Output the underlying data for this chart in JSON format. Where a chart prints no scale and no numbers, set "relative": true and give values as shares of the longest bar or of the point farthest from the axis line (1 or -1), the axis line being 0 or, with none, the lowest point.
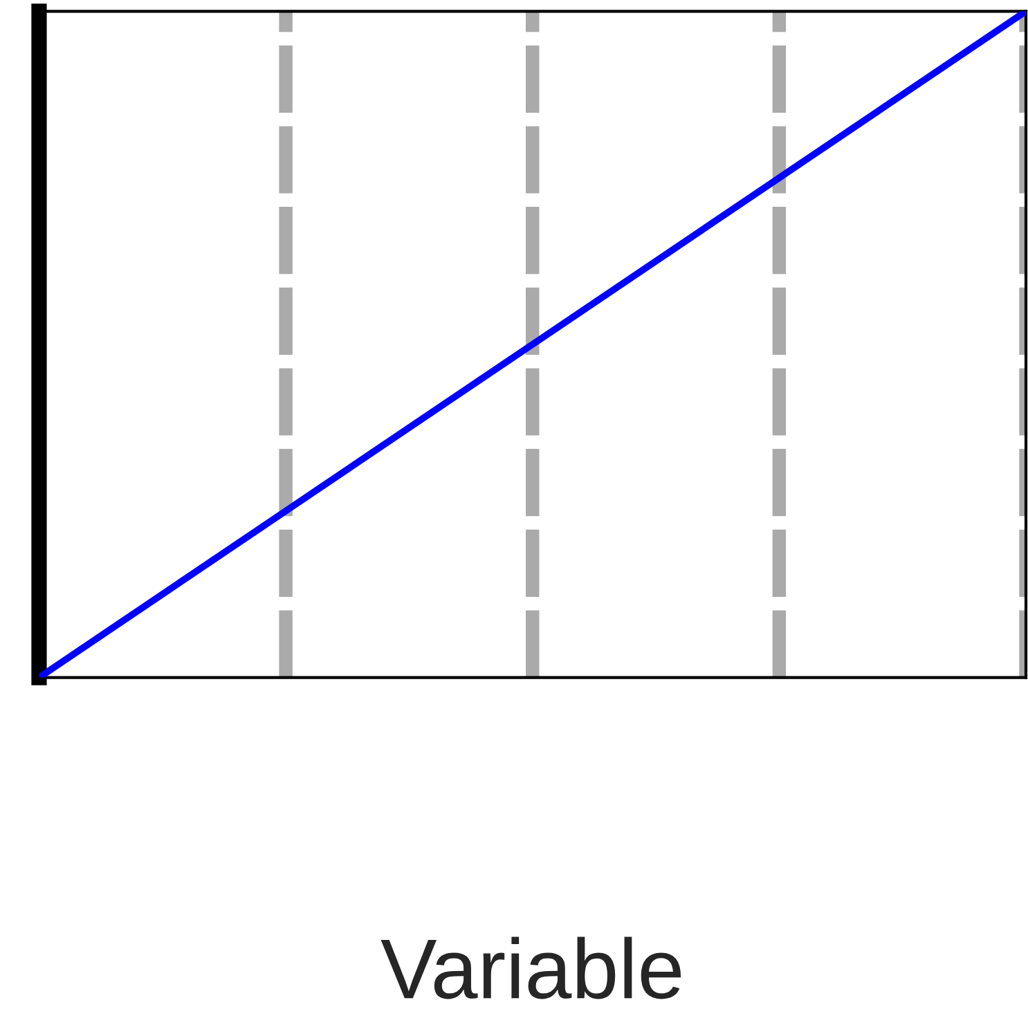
{
  "chart_data": {
    "type": "line",
    "xlabel": "Variable",
    "relative": true,
    "categories": [
      null,
      null,
      null,
      null,
      null
    ],
    "series": [
      {
        "color": "#0000ff",
        "values": [
          0,
          0.25,
          0.5,
          0.75,
          1
        ]
      }
    ],
    "grid": "x",
    "tick_labels": false,
    "marker": "none",
    "line_style": "solid"
  }
}
